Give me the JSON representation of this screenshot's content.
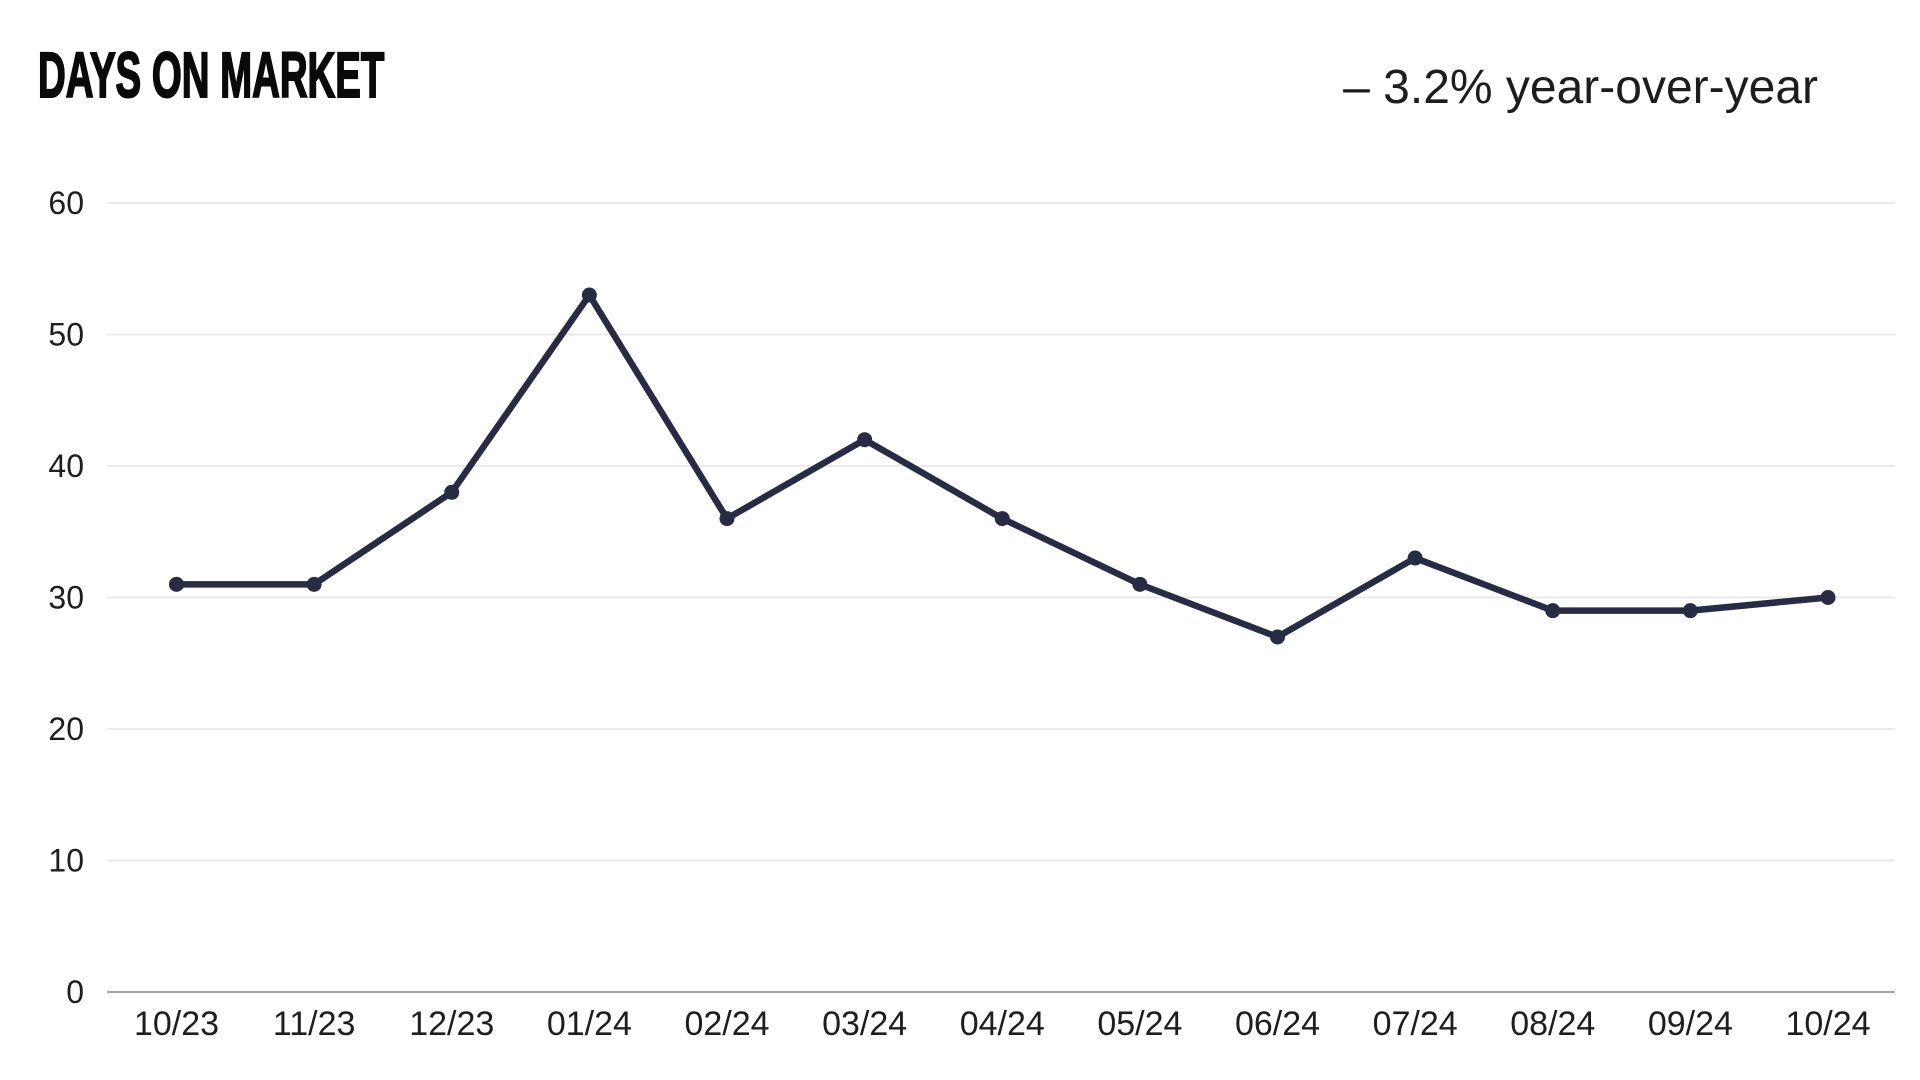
{
  "header": {
    "title": "DAYS ON MARKET",
    "annotation": "– 3.2% year-over-year"
  },
  "chart_data": {
    "type": "line",
    "title": "DAYS ON MARKET",
    "annotation": "– 3.2% year-over-year",
    "categories": [
      "10/23",
      "11/23",
      "12/23",
      "01/24",
      "02/24",
      "03/24",
      "04/24",
      "05/24",
      "06/24",
      "07/24",
      "08/24",
      "09/24",
      "10/24"
    ],
    "series": [
      {
        "name": "Days on Market",
        "values": [
          31,
          31,
          38,
          53,
          36,
          42,
          36,
          31,
          27,
          33,
          29,
          29,
          30
        ]
      }
    ],
    "xlabel": "",
    "ylabel": "",
    "ylim": [
      0,
      60
    ],
    "yticks": [
      0,
      10,
      20,
      30,
      40,
      50,
      60
    ],
    "grid": true,
    "legend": "none",
    "colors": {
      "line": "#272b44",
      "point": "#272b44",
      "gridline": "#e7e7e7",
      "baseline": "#a6a6a6",
      "tick_label": "#1e1e1e",
      "title": "#0a0a0a",
      "annotation": "#1d1d1d",
      "background": "#ffffff"
    }
  }
}
